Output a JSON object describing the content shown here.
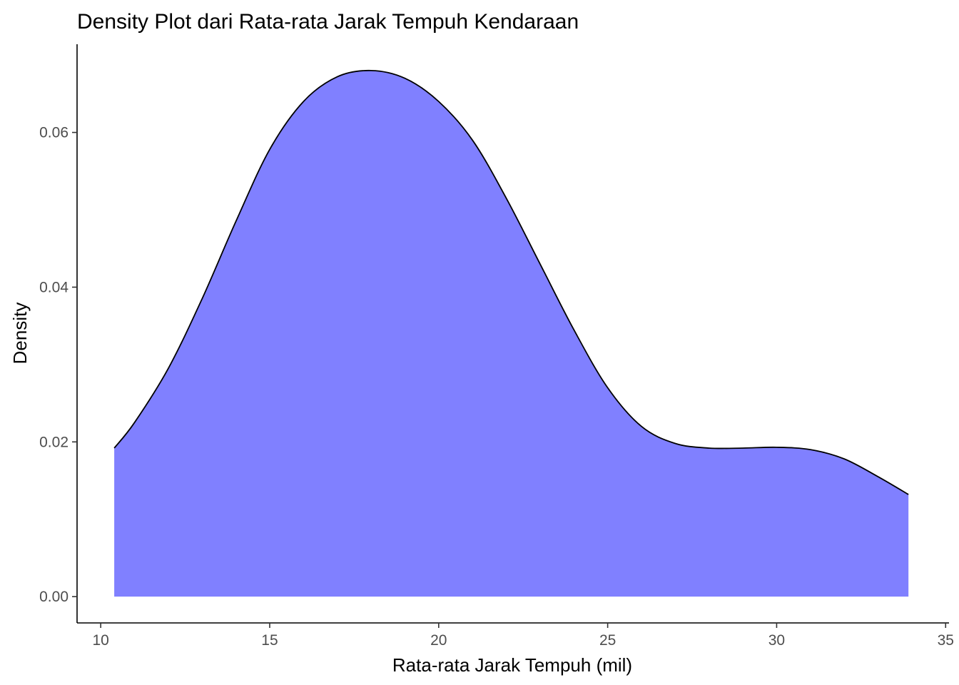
{
  "chart_data": {
    "type": "area",
    "title": "Density Plot dari Rata-rata Jarak Tempuh Kendaraan",
    "xlabel": "Rata-rata Jarak Tempuh (mil)",
    "ylabel": "Density",
    "xlim": [
      9.3,
      35.1
    ],
    "ylim": [
      -0.0034,
      0.0714
    ],
    "x_ticks": [
      10,
      15,
      20,
      25,
      30,
      35
    ],
    "y_ticks": [
      0.0,
      0.02,
      0.04,
      0.06
    ],
    "x_tick_labels": [
      "10",
      "15",
      "20",
      "25",
      "30",
      "35"
    ],
    "y_tick_labels": [
      "0.00",
      "0.02",
      "0.04",
      "0.06"
    ],
    "grid": false,
    "fill_color": "#8080ff",
    "line_color": "#000000",
    "series": [
      {
        "x": [
          10.4,
          11.0,
          12.0,
          13.0,
          14.0,
          15.0,
          16.0,
          17.0,
          18.0,
          19.0,
          20.0,
          21.0,
          22.0,
          23.0,
          24.0,
          25.0,
          26.0,
          27.0,
          28.0,
          29.0,
          30.0,
          31.0,
          32.0,
          33.0,
          33.9
        ],
        "y": [
          0.0192,
          0.0225,
          0.0295,
          0.0385,
          0.0485,
          0.0578,
          0.064,
          0.0672,
          0.068,
          0.067,
          0.064,
          0.059,
          0.0515,
          0.043,
          0.0345,
          0.027,
          0.022,
          0.0198,
          0.0192,
          0.0192,
          0.0193,
          0.019,
          0.0178,
          0.0155,
          0.0132
        ]
      }
    ]
  }
}
